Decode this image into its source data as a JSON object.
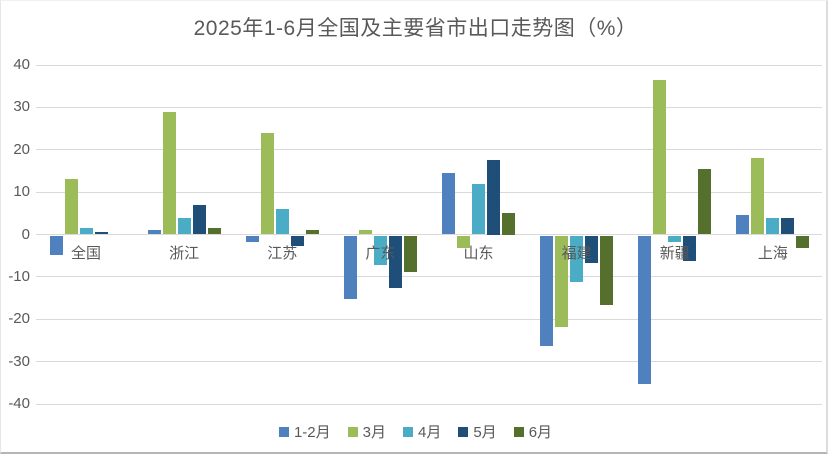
{
  "chart_data": {
    "type": "bar",
    "title": "2025年1-6月全国及主要省市出口走势图（%）",
    "categories": [
      "全国",
      "浙江",
      "江苏",
      "广东",
      "山东",
      "福建",
      "新疆",
      "上海"
    ],
    "series": [
      {
        "name": "1-2月",
        "color": "#4E81BD",
        "values": [
          -4.5,
          1,
          -1.5,
          -15,
          14.5,
          -26,
          -35,
          4.5
        ]
      },
      {
        "name": "3月",
        "color": "#9CBB59",
        "values": [
          13,
          29,
          24,
          1,
          -3,
          -21.5,
          36.5,
          18
        ]
      },
      {
        "name": "4月",
        "color": "#4BACC6",
        "values": [
          1.5,
          4,
          6,
          -7,
          12,
          -11,
          -1.5,
          4
        ]
      },
      {
        "name": "5月",
        "color": "#1F4E79",
        "values": [
          0.5,
          7,
          -2.5,
          -12.5,
          17.5,
          -6.5,
          -6,
          4
        ]
      },
      {
        "name": "6月",
        "color": "#55702C",
        "values": [
          0,
          1.5,
          1,
          -8.5,
          5,
          -16.5,
          15.5,
          -3
        ]
      }
    ],
    "ylim": [
      -40,
      40
    ],
    "yticks": [
      40,
      30,
      20,
      10,
      0,
      -10,
      -20,
      -30,
      -40
    ],
    "ytick_labels": [
      "40",
      "30",
      "20",
      "10",
      "0",
      "-10",
      "-20",
      "-30",
      "-40"
    ],
    "xlabel": "",
    "ylabel": "",
    "grid": true,
    "legend_position": "bottom",
    "colors": {
      "title_text": "#595959",
      "axis_text": "#595959",
      "gridline": "#d9d9d9"
    }
  }
}
